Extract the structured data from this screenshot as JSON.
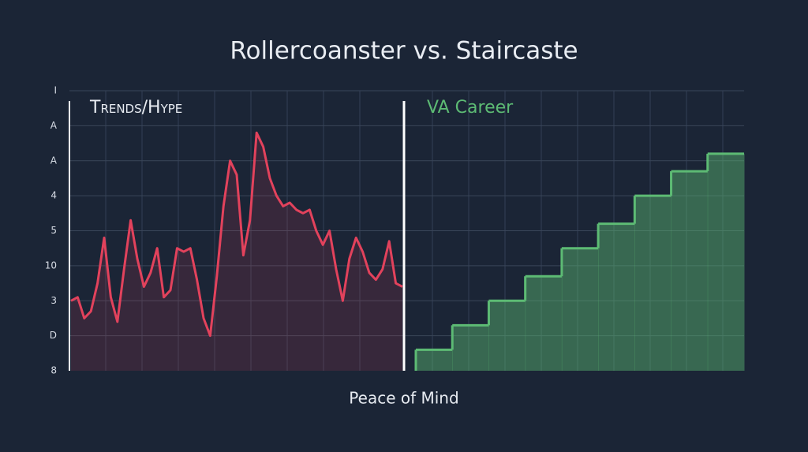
{
  "chart_data": {
    "type": "line-vs-step",
    "title": "Rollercoanster vs. Staircaste",
    "xlabel": "Peace of Mind",
    "ylim": [
      0,
      8
    ],
    "yticks": [
      {
        "value": 0,
        "label": "8"
      },
      {
        "value": 1,
        "label": "D"
      },
      {
        "value": 2,
        "label": "3"
      },
      {
        "value": 3,
        "label": "10"
      },
      {
        "value": 4,
        "label": "5"
      },
      {
        "value": 5,
        "label": "4"
      },
      {
        "value": 6,
        "label": "A"
      },
      {
        "value": 7,
        "label": "A"
      },
      {
        "value": 8,
        "label": "I"
      }
    ],
    "grid": true,
    "series": [
      {
        "name": "Trends/Hype",
        "type": "line",
        "color": "#e2425c",
        "values": [
          2.0,
          2.1,
          1.5,
          1.7,
          2.5,
          3.8,
          2.1,
          1.4,
          2.9,
          4.3,
          3.2,
          2.4,
          2.8,
          3.5,
          2.1,
          2.3,
          3.5,
          3.4,
          3.5,
          2.6,
          1.5,
          1.0,
          2.7,
          4.7,
          6.0,
          5.6,
          3.3,
          4.3,
          6.8,
          6.4,
          5.5,
          5.0,
          4.7,
          4.8,
          4.6,
          4.5,
          4.6,
          4.0,
          3.6,
          4.0,
          2.9,
          2.0,
          3.2,
          3.8,
          3.4,
          2.8,
          2.6,
          2.9,
          3.7,
          2.5,
          2.4
        ]
      },
      {
        "name": "VA Career",
        "type": "step",
        "color": "#5dbb74",
        "values": [
          0.6,
          1.3,
          2.0,
          2.7,
          3.5,
          4.2,
          5.0,
          5.7,
          6.2
        ]
      }
    ]
  }
}
